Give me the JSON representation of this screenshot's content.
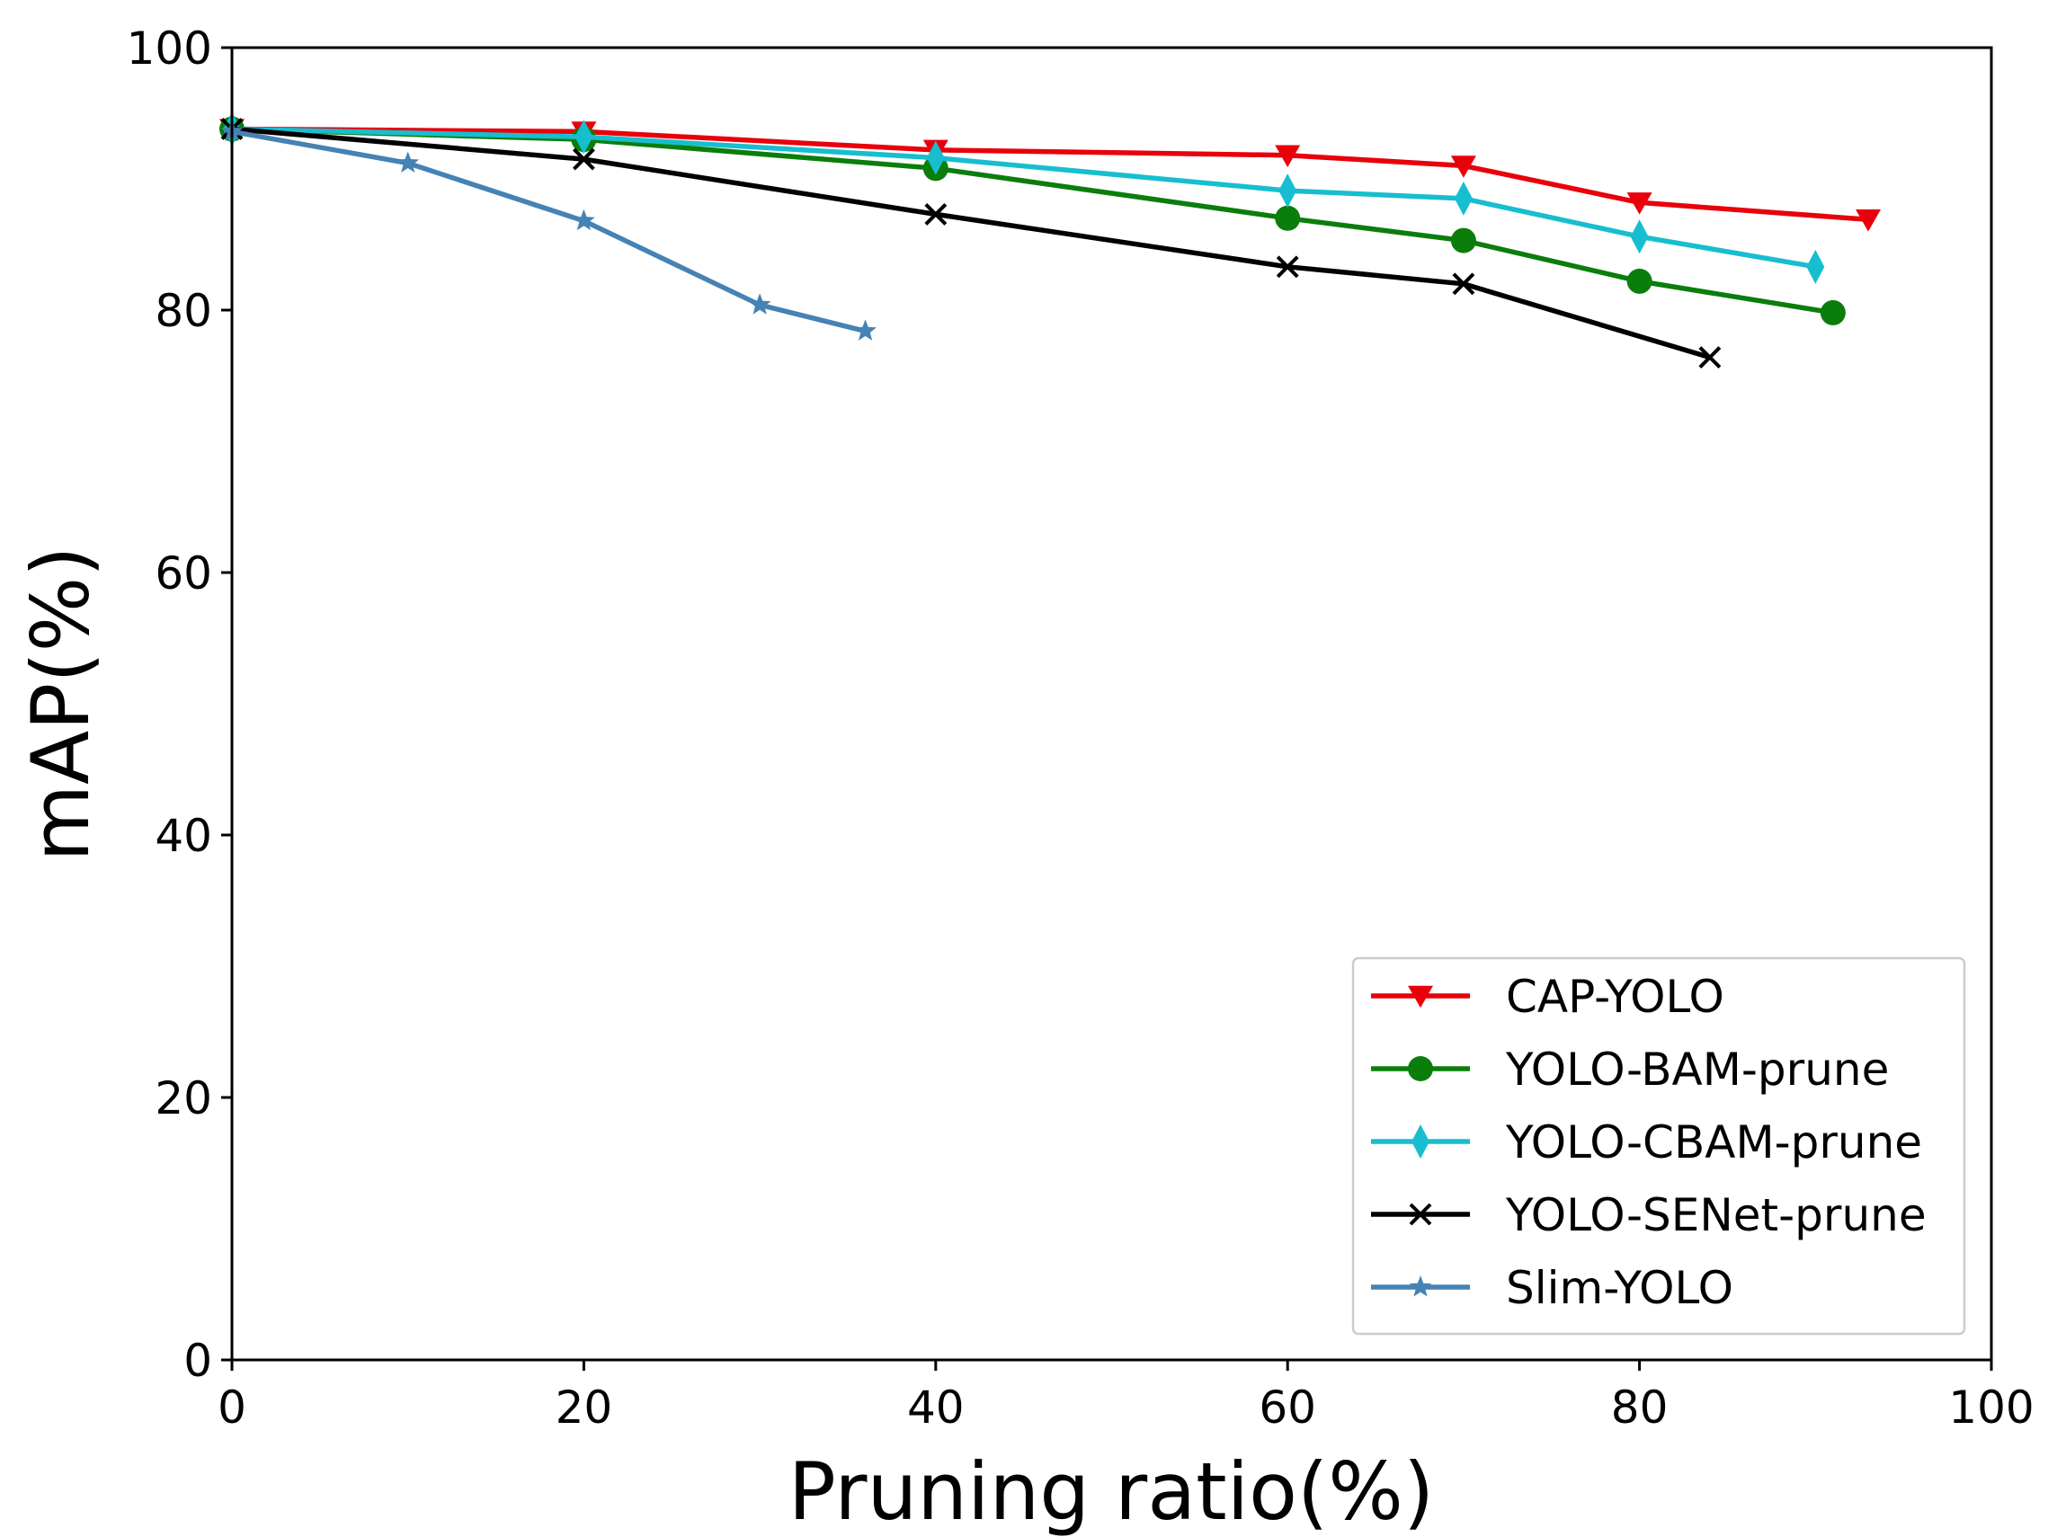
{
  "chart_data": {
    "type": "line",
    "title": "",
    "xlabel": "Pruning ratio(%)",
    "ylabel": "mAP(%)",
    "xlim": [
      0,
      100
    ],
    "ylim": [
      0,
      100
    ],
    "xticks": [
      "0",
      "20",
      "40",
      "60",
      "80",
      "100"
    ],
    "yticks": [
      "0",
      "20",
      "40",
      "60",
      "80",
      "100"
    ],
    "grid": false,
    "legend_position": "bottom-right",
    "series": [
      {
        "name": "CAP-YOLO",
        "color": "#e8000b",
        "marker": "triangle-down",
        "x": [
          0,
          20,
          40,
          60,
          70,
          80,
          93
        ],
        "y": [
          93.8,
          93.6,
          92.2,
          91.8,
          91.0,
          88.2,
          86.9
        ]
      },
      {
        "name": "YOLO-BAM-prune",
        "color": "#0b7d0b",
        "marker": "circle",
        "x": [
          0,
          20,
          40,
          60,
          70,
          80,
          91
        ],
        "y": [
          93.8,
          93.0,
          90.8,
          87.0,
          85.3,
          82.2,
          79.8
        ]
      },
      {
        "name": "YOLO-CBAM-prune",
        "color": "#17becf",
        "marker": "thin-diamond",
        "x": [
          0,
          20,
          40,
          60,
          70,
          80,
          90
        ],
        "y": [
          93.8,
          93.2,
          91.6,
          89.1,
          88.5,
          85.6,
          83.3
        ]
      },
      {
        "name": "YOLO-SENet-prune",
        "color": "#000000",
        "marker": "x",
        "x": [
          0,
          20,
          40,
          60,
          70,
          84
        ],
        "y": [
          93.8,
          91.5,
          87.3,
          83.3,
          82.0,
          76.4
        ]
      },
      {
        "name": "Slim-YOLO",
        "color": "#4682b4",
        "marker": "star",
        "x": [
          0,
          10,
          20,
          30,
          36
        ],
        "y": [
          93.6,
          91.2,
          86.8,
          80.4,
          78.4
        ]
      }
    ]
  }
}
